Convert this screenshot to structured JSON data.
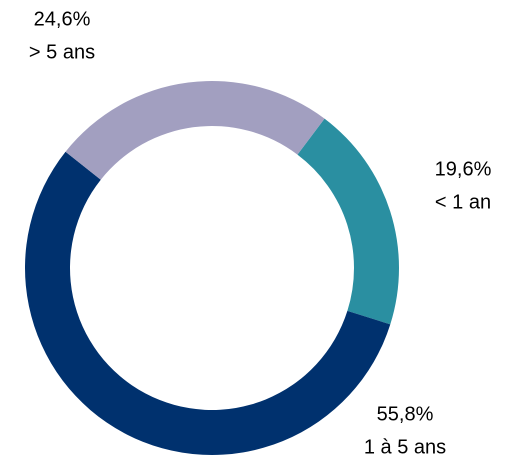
{
  "chart_data": {
    "type": "donut",
    "categories": [
      "< 1 an",
      "1 à 5 ans",
      "> 5 ans"
    ],
    "values": [
      19.6,
      55.8,
      24.6
    ],
    "value_labels": [
      "19,6%",
      "55,8%",
      "24,6%"
    ],
    "colors": [
      "#2a8fa1",
      "#00316e",
      "#a29fc0"
    ]
  }
}
